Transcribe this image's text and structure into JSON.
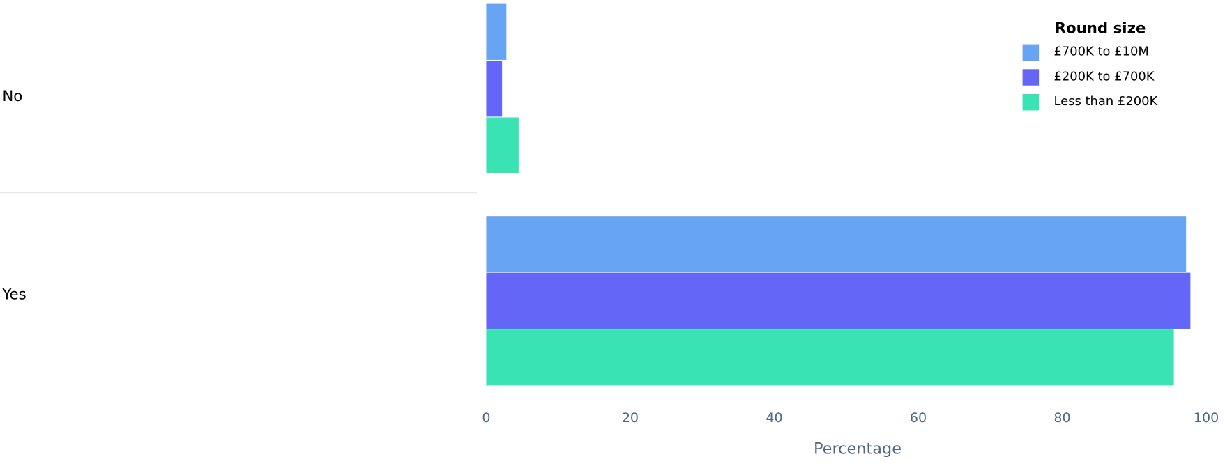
{
  "chart_data": {
    "type": "bar",
    "orientation": "horizontal",
    "categories": [
      "No",
      "Yes"
    ],
    "x_label": "Percentage",
    "legend_title": "Round size",
    "legend_position": "top-right",
    "series": [
      {
        "name": "£700K to £10M",
        "color": "#68a4f4",
        "values": [
          2.8,
          97.2
        ]
      },
      {
        "name": "£200K to £700K",
        "color": "#6366f6",
        "values": [
          2.2,
          97.8
        ]
      },
      {
        "name": "Less than £200K",
        "color": "#39e3b4",
        "values": [
          4.5,
          95.5
        ]
      }
    ],
    "xlim": [
      0,
      100
    ],
    "xticks": [
      0,
      20,
      40,
      60,
      80,
      100
    ],
    "grid": false
  }
}
